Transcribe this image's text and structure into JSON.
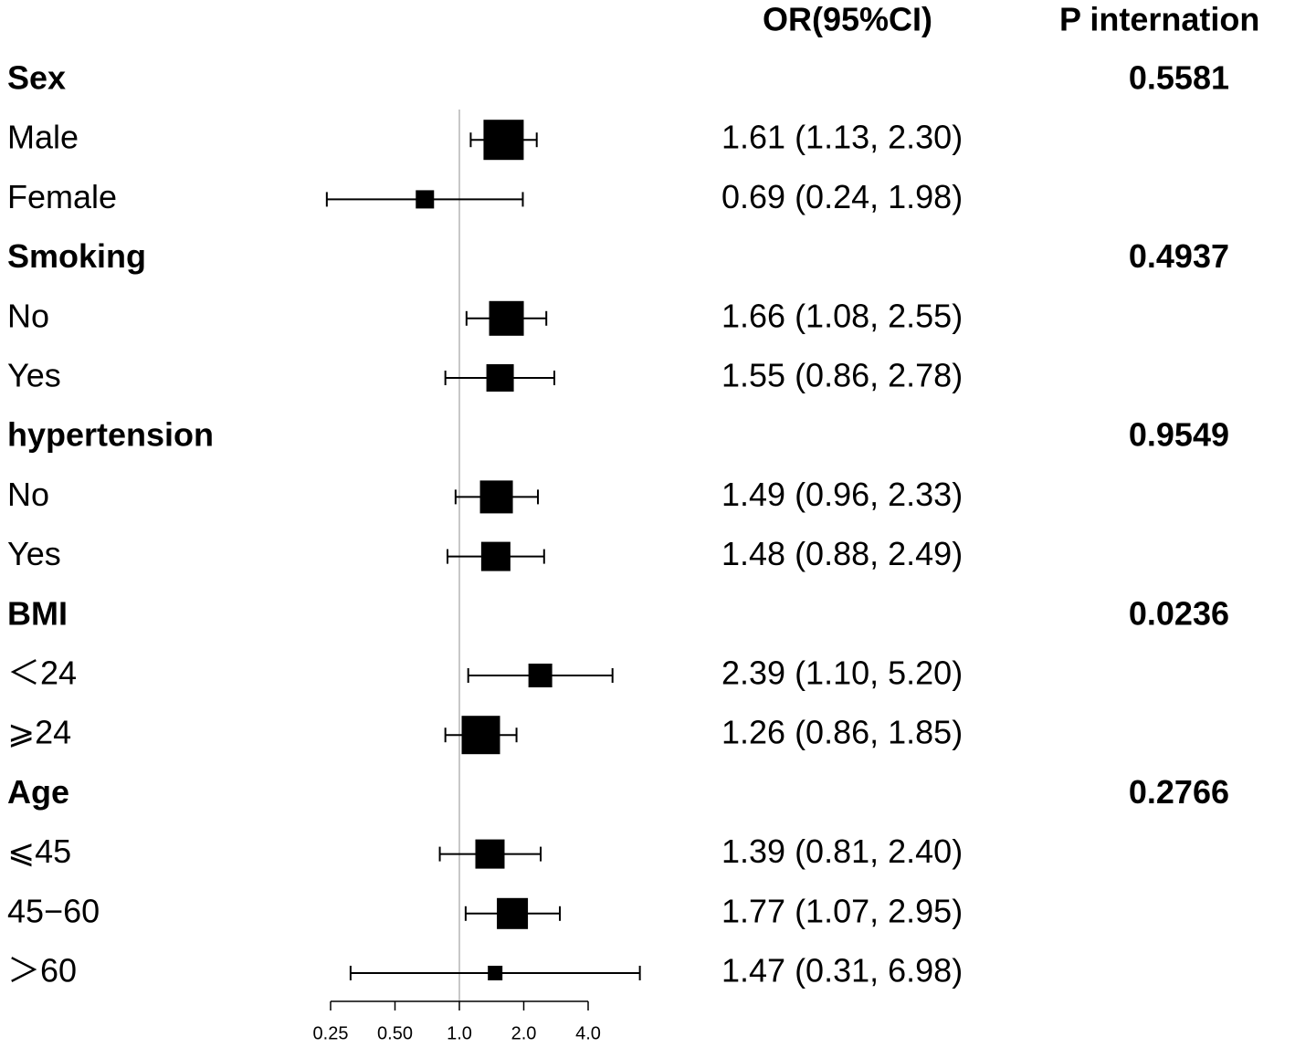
{
  "chart_data": {
    "type": "forest",
    "columns": [
      "OR(95%CI)",
      "P internation"
    ],
    "categories": [
      "Sex",
      "Male",
      "Female",
      "Smoking",
      "No",
      "Yes",
      "hypertension",
      "No",
      "Yes",
      "BMI",
      "＜24",
      "⩾24",
      "Age",
      "⩽45",
      "45−60",
      "＞60"
    ],
    "values": [
      null,
      1.61,
      0.69,
      null,
      1.66,
      1.55,
      null,
      1.49,
      1.48,
      null,
      2.39,
      1.26,
      null,
      1.39,
      1.77,
      1.47
    ],
    "lower": [
      null,
      1.13,
      0.24,
      null,
      1.08,
      0.86,
      null,
      0.96,
      0.88,
      null,
      1.1,
      0.86,
      null,
      0.81,
      1.07,
      0.31
    ],
    "upper": [
      null,
      2.3,
      1.98,
      null,
      2.55,
      2.78,
      null,
      2.33,
      2.49,
      null,
      5.2,
      1.85,
      null,
      2.4,
      2.95,
      6.98
    ],
    "value_labels": [
      null,
      "1.61 (1.13, 2.30)",
      "0.69 (0.24, 1.98)",
      null,
      "1.66 (1.08, 2.55)",
      "1.55 (0.86, 2.78)",
      null,
      "1.49 (0.96, 2.33)",
      "1.48 (0.88, 2.49)",
      null,
      "2.39 (1.10, 5.20)",
      "1.26 (0.86, 1.85)",
      null,
      "1.39 (0.81, 2.40)",
      "1.77 (1.07, 2.95)",
      "1.47 (0.31, 6.98)"
    ],
    "weights": [
      null,
      44,
      20,
      null,
      38,
      30,
      null,
      36,
      32,
      null,
      26,
      42,
      null,
      32,
      34,
      16
    ],
    "p_values": [
      0.5581,
      null,
      null,
      0.4937,
      null,
      null,
      0.9549,
      null,
      null,
      0.0236,
      null,
      null,
      0.2766,
      null,
      null,
      null
    ],
    "xscale": "log",
    "xlim": [
      0.25,
      4
    ],
    "xticks": [
      0.25,
      {
        "value": 0.5,
        "label": "0.50"
      },
      {
        "value": 1,
        "label": "1.0"
      },
      {
        "value": 2,
        "label": "2.0"
      },
      {
        "value": 4,
        "label": "4.0"
      }
    ],
    "reference": 1,
    "color": "#000000"
  }
}
